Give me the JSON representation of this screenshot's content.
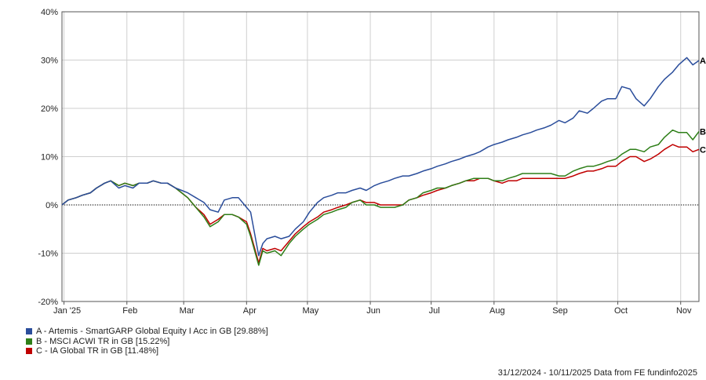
{
  "chart_data": {
    "type": "line",
    "title": "",
    "xlabel": "",
    "ylabel": "",
    "ylim": [
      -20,
      40
    ],
    "yticks": [
      -20,
      -10,
      0,
      10,
      20,
      30,
      40
    ],
    "ytick_labels": [
      "-20%",
      "-10%",
      "0%",
      "10%",
      "20%",
      "30%",
      "40%"
    ],
    "xlim": [
      "2024-12-31",
      "2025-11-10"
    ],
    "xticks": [
      "2025-01-01",
      "2025-02-01",
      "2025-03-01",
      "2025-04-01",
      "2025-05-01",
      "2025-06-01",
      "2025-07-01",
      "2025-08-01",
      "2025-09-01",
      "2025-10-01",
      "2025-11-01"
    ],
    "xtick_labels": [
      "Jan '25",
      "Feb",
      "Mar",
      "Apr",
      "May",
      "Jun",
      "Jul",
      "Aug",
      "Sep",
      "Oct",
      "Nov"
    ],
    "grid": true,
    "zero_line": "dotted",
    "legend_position": "bottom-left",
    "series": [
      {
        "name": "A - Artemis - SmartGARP Global Equity I Acc in GB [29.88%]",
        "end_label": "A",
        "color": "#2a4d9b",
        "x": [
          "2024-12-31",
          "2025-01-03",
          "2025-01-07",
          "2025-01-10",
          "2025-01-14",
          "2025-01-17",
          "2025-01-21",
          "2025-01-24",
          "2025-01-28",
          "2025-01-31",
          "2025-02-04",
          "2025-02-07",
          "2025-02-11",
          "2025-02-14",
          "2025-02-18",
          "2025-02-21",
          "2025-02-25",
          "2025-02-28",
          "2025-03-03",
          "2025-03-07",
          "2025-03-11",
          "2025-03-14",
          "2025-03-18",
          "2025-03-21",
          "2025-03-25",
          "2025-03-28",
          "2025-04-01",
          "2025-04-03",
          "2025-04-07",
          "2025-04-09",
          "2025-04-11",
          "2025-04-15",
          "2025-04-18",
          "2025-04-22",
          "2025-04-25",
          "2025-04-29",
          "2025-05-02",
          "2025-05-06",
          "2025-05-09",
          "2025-05-13",
          "2025-05-16",
          "2025-05-20",
          "2025-05-23",
          "2025-05-27",
          "2025-05-30",
          "2025-06-03",
          "2025-06-06",
          "2025-06-10",
          "2025-06-13",
          "2025-06-17",
          "2025-06-20",
          "2025-06-24",
          "2025-06-27",
          "2025-07-01",
          "2025-07-04",
          "2025-07-08",
          "2025-07-11",
          "2025-07-15",
          "2025-07-18",
          "2025-07-22",
          "2025-07-25",
          "2025-07-29",
          "2025-08-01",
          "2025-08-05",
          "2025-08-08",
          "2025-08-12",
          "2025-08-15",
          "2025-08-19",
          "2025-08-22",
          "2025-08-26",
          "2025-08-29",
          "2025-09-02",
          "2025-09-05",
          "2025-09-09",
          "2025-09-12",
          "2025-09-16",
          "2025-09-19",
          "2025-09-23",
          "2025-09-26",
          "2025-09-30",
          "2025-10-03",
          "2025-10-07",
          "2025-10-10",
          "2025-10-14",
          "2025-10-17",
          "2025-10-21",
          "2025-10-24",
          "2025-10-28",
          "2025-10-31",
          "2025-11-04",
          "2025-11-07",
          "2025-11-10"
        ],
        "values": [
          0.0,
          1.0,
          1.5,
          2.0,
          2.5,
          3.5,
          4.5,
          5.0,
          3.5,
          4.0,
          3.5,
          4.5,
          4.5,
          5.0,
          4.5,
          4.5,
          3.5,
          3.0,
          2.5,
          1.5,
          0.5,
          -1.0,
          -1.5,
          1.0,
          1.5,
          1.5,
          -0.5,
          -1.5,
          -10.5,
          -8.0,
          -7.0,
          -6.5,
          -7.0,
          -6.5,
          -5.0,
          -3.5,
          -1.5,
          0.5,
          1.5,
          2.0,
          2.5,
          2.5,
          3.0,
          3.5,
          3.0,
          4.0,
          4.5,
          5.0,
          5.5,
          6.0,
          6.0,
          6.5,
          7.0,
          7.5,
          8.0,
          8.5,
          9.0,
          9.5,
          10.0,
          10.5,
          11.0,
          12.0,
          12.5,
          13.0,
          13.5,
          14.0,
          14.5,
          15.0,
          15.5,
          16.0,
          16.5,
          17.5,
          17.0,
          18.0,
          19.5,
          19.0,
          20.0,
          21.5,
          22.0,
          22.0,
          24.5,
          24.0,
          22.0,
          20.5,
          22.0,
          24.5,
          26.0,
          27.5,
          29.0,
          30.5,
          29.0,
          29.9
        ]
      },
      {
        "name": "B - MSCI ACWI TR in GB [15.22%]",
        "end_label": "B",
        "color": "#2e7f18",
        "x": [
          "2024-12-31",
          "2025-01-03",
          "2025-01-07",
          "2025-01-10",
          "2025-01-14",
          "2025-01-17",
          "2025-01-21",
          "2025-01-24",
          "2025-01-28",
          "2025-01-31",
          "2025-02-04",
          "2025-02-07",
          "2025-02-11",
          "2025-02-14",
          "2025-02-18",
          "2025-02-21",
          "2025-02-25",
          "2025-02-28",
          "2025-03-03",
          "2025-03-07",
          "2025-03-11",
          "2025-03-14",
          "2025-03-18",
          "2025-03-21",
          "2025-03-25",
          "2025-03-28",
          "2025-04-01",
          "2025-04-03",
          "2025-04-07",
          "2025-04-09",
          "2025-04-11",
          "2025-04-15",
          "2025-04-18",
          "2025-04-22",
          "2025-04-25",
          "2025-04-29",
          "2025-05-02",
          "2025-05-06",
          "2025-05-09",
          "2025-05-13",
          "2025-05-16",
          "2025-05-20",
          "2025-05-23",
          "2025-05-27",
          "2025-05-30",
          "2025-06-03",
          "2025-06-06",
          "2025-06-10",
          "2025-06-13",
          "2025-06-17",
          "2025-06-20",
          "2025-06-24",
          "2025-06-27",
          "2025-07-01",
          "2025-07-04",
          "2025-07-08",
          "2025-07-11",
          "2025-07-15",
          "2025-07-18",
          "2025-07-22",
          "2025-07-25",
          "2025-07-29",
          "2025-08-01",
          "2025-08-05",
          "2025-08-08",
          "2025-08-12",
          "2025-08-15",
          "2025-08-19",
          "2025-08-22",
          "2025-08-26",
          "2025-08-29",
          "2025-09-02",
          "2025-09-05",
          "2025-09-09",
          "2025-09-12",
          "2025-09-16",
          "2025-09-19",
          "2025-09-23",
          "2025-09-26",
          "2025-09-30",
          "2025-10-03",
          "2025-10-07",
          "2025-10-10",
          "2025-10-14",
          "2025-10-17",
          "2025-10-21",
          "2025-10-24",
          "2025-10-28",
          "2025-10-31",
          "2025-11-04",
          "2025-11-07",
          "2025-11-10"
        ],
        "values": [
          0.0,
          1.0,
          1.5,
          2.0,
          2.5,
          3.5,
          4.5,
          5.0,
          4.0,
          4.5,
          4.0,
          4.5,
          4.5,
          5.0,
          4.5,
          4.5,
          3.5,
          2.5,
          1.5,
          -0.5,
          -2.5,
          -4.5,
          -3.5,
          -2.0,
          -2.0,
          -2.5,
          -4.0,
          -6.5,
          -12.5,
          -9.5,
          -10.0,
          -9.5,
          -10.5,
          -8.0,
          -6.5,
          -5.0,
          -4.0,
          -3.0,
          -2.0,
          -1.5,
          -1.0,
          -0.5,
          0.5,
          1.0,
          0.0,
          0.0,
          -0.5,
          -0.5,
          -0.5,
          0.0,
          1.0,
          1.5,
          2.5,
          3.0,
          3.5,
          3.5,
          4.0,
          4.5,
          5.0,
          5.5,
          5.5,
          5.5,
          5.0,
          5.0,
          5.5,
          6.0,
          6.5,
          6.5,
          6.5,
          6.5,
          6.5,
          6.0,
          6.0,
          7.0,
          7.5,
          8.0,
          8.0,
          8.5,
          9.0,
          9.5,
          10.5,
          11.5,
          11.5,
          11.0,
          12.0,
          12.5,
          14.0,
          15.5,
          15.0,
          15.0,
          13.5,
          15.2
        ]
      },
      {
        "name": "C - IA Global TR in GB [11.48%]",
        "end_label": "C",
        "color": "#c00000",
        "x": [
          "2024-12-31",
          "2025-01-03",
          "2025-01-07",
          "2025-01-10",
          "2025-01-14",
          "2025-01-17",
          "2025-01-21",
          "2025-01-24",
          "2025-01-28",
          "2025-01-31",
          "2025-02-04",
          "2025-02-07",
          "2025-02-11",
          "2025-02-14",
          "2025-02-18",
          "2025-02-21",
          "2025-02-25",
          "2025-02-28",
          "2025-03-03",
          "2025-03-07",
          "2025-03-11",
          "2025-03-14",
          "2025-03-18",
          "2025-03-21",
          "2025-03-25",
          "2025-03-28",
          "2025-04-01",
          "2025-04-03",
          "2025-04-07",
          "2025-04-09",
          "2025-04-11",
          "2025-04-15",
          "2025-04-18",
          "2025-04-22",
          "2025-04-25",
          "2025-04-29",
          "2025-05-02",
          "2025-05-06",
          "2025-05-09",
          "2025-05-13",
          "2025-05-16",
          "2025-05-20",
          "2025-05-23",
          "2025-05-27",
          "2025-05-30",
          "2025-06-03",
          "2025-06-06",
          "2025-06-10",
          "2025-06-13",
          "2025-06-17",
          "2025-06-20",
          "2025-06-24",
          "2025-06-27",
          "2025-07-01",
          "2025-07-04",
          "2025-07-08",
          "2025-07-11",
          "2025-07-15",
          "2025-07-18",
          "2025-07-22",
          "2025-07-25",
          "2025-07-29",
          "2025-08-01",
          "2025-08-05",
          "2025-08-08",
          "2025-08-12",
          "2025-08-15",
          "2025-08-19",
          "2025-08-22",
          "2025-08-26",
          "2025-08-29",
          "2025-09-02",
          "2025-09-05",
          "2025-09-09",
          "2025-09-12",
          "2025-09-16",
          "2025-09-19",
          "2025-09-23",
          "2025-09-26",
          "2025-09-30",
          "2025-10-03",
          "2025-10-07",
          "2025-10-10",
          "2025-10-14",
          "2025-10-17",
          "2025-10-21",
          "2025-10-24",
          "2025-10-28",
          "2025-10-31",
          "2025-11-04",
          "2025-11-07",
          "2025-11-10"
        ],
        "values": [
          0.0,
          1.0,
          1.5,
          2.0,
          2.5,
          3.5,
          4.5,
          5.0,
          4.0,
          4.5,
          4.0,
          4.5,
          4.5,
          5.0,
          4.5,
          4.5,
          3.5,
          2.5,
          1.5,
          -0.5,
          -2.0,
          -4.0,
          -3.0,
          -2.0,
          -2.0,
          -2.5,
          -3.5,
          -6.0,
          -12.0,
          -9.0,
          -9.5,
          -9.0,
          -9.5,
          -7.5,
          -6.0,
          -4.5,
          -3.5,
          -2.5,
          -1.5,
          -1.0,
          -0.5,
          0.0,
          0.5,
          1.0,
          0.5,
          0.5,
          0.0,
          0.0,
          0.0,
          0.0,
          1.0,
          1.5,
          2.0,
          2.5,
          3.0,
          3.5,
          4.0,
          4.5,
          5.0,
          5.0,
          5.5,
          5.5,
          5.0,
          4.5,
          5.0,
          5.0,
          5.5,
          5.5,
          5.5,
          5.5,
          5.5,
          5.5,
          5.5,
          6.0,
          6.5,
          7.0,
          7.0,
          7.5,
          8.0,
          8.0,
          9.0,
          10.0,
          10.0,
          9.0,
          9.5,
          10.5,
          11.5,
          12.5,
          12.0,
          12.0,
          11.0,
          11.5
        ]
      }
    ],
    "footer": "31/12/2024 - 10/11/2025 Data from FE fundinfo2025"
  }
}
